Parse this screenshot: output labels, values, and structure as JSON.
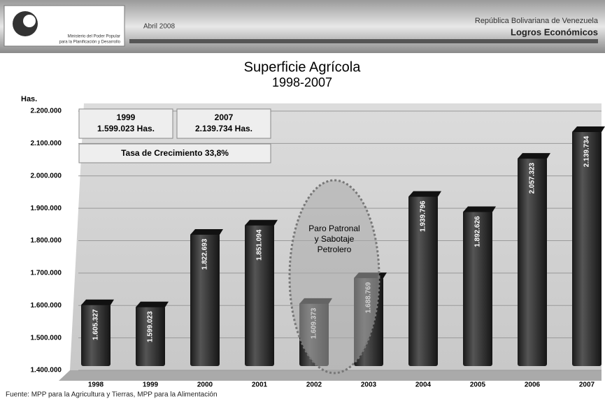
{
  "header": {
    "date": "Abril 2008",
    "ministry_line1": "Ministerio del Poder Popular",
    "ministry_line2": "para la Planificación y Desarrollo",
    "country": "República Bolivariana de Venezuela",
    "section": "Logros Económicos"
  },
  "chart_data": {
    "type": "bar",
    "title": "Superficie Agrícola",
    "subtitle": "1998-2007",
    "y_axis_label": "Has.",
    "categories": [
      "1998",
      "1999",
      "2000",
      "2001",
      "2002",
      "2003",
      "2004",
      "2005",
      "2006",
      "2007"
    ],
    "values": [
      1605327,
      1599023,
      1822693,
      1851094,
      1609373,
      1688769,
      1939796,
      1892626,
      2057323,
      2139734
    ],
    "value_labels": [
      "1.605.327",
      "1.599.023",
      "1.822.693",
      "1.851.094",
      "1.609.373",
      "1.688.769",
      "1.939.796",
      "1.892.626",
      "2.057.323",
      "2.139.734"
    ],
    "color": "#2e2e2e",
    "ylim": [
      1400000,
      2200000
    ],
    "yticks": [
      {
        "value": 1400000,
        "label": "1.400.000"
      },
      {
        "value": 1500000,
        "label": "1.500.000"
      },
      {
        "value": 1600000,
        "label": "1.600.000"
      },
      {
        "value": 1700000,
        "label": "1.700.000"
      },
      {
        "value": 1800000,
        "label": "1.800.000"
      },
      {
        "value": 1900000,
        "label": "1.900.000"
      },
      {
        "value": 2000000,
        "label": "2.000.000"
      },
      {
        "value": 2100000,
        "label": "2.100.000"
      },
      {
        "value": 2200000,
        "label": "2.200.000"
      }
    ],
    "grid": true,
    "annotations": [
      "1999",
      "1.599.023 Has.",
      "2007",
      "2.139.734 Has.",
      "Tasa de Crecimiento 33,8%",
      "Paro Patronal",
      "y Sabotaje",
      "Petrolero"
    ]
  },
  "source": "Fuente: MPP para la Agricultura y Tierras, MPP para la Alimentación"
}
